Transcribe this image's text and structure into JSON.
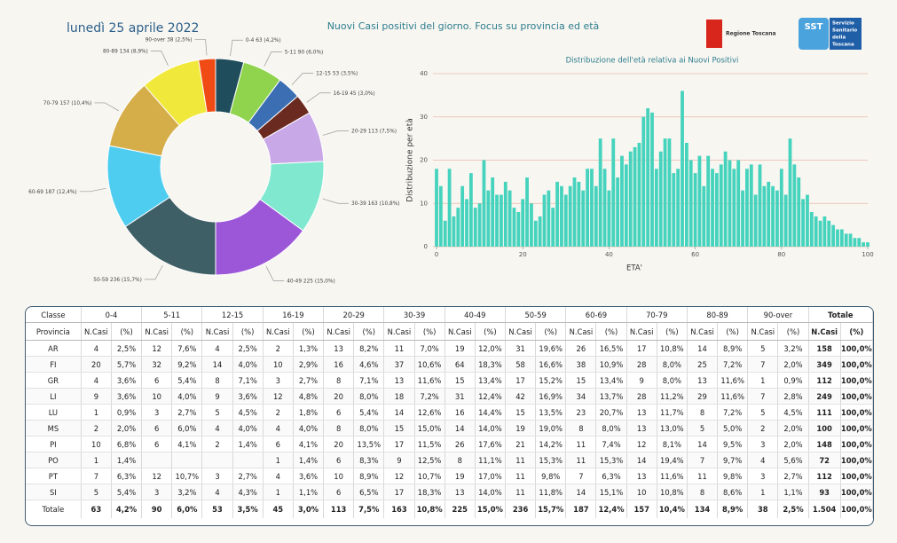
{
  "header": {
    "date": "lunedì 25 aprile 2022",
    "title": "Nuovi Casi positivi del giorno. Focus su provincia ed età",
    "logo1": "Regione Toscana",
    "logo2_mark": "SST",
    "logo2": [
      "Servizio",
      "Sanitario",
      "della",
      "Toscana"
    ]
  },
  "chart_data": [
    {
      "type": "pie",
      "categories": [
        "0-4",
        "5-11",
        "12-15",
        "16-19",
        "20-29",
        "30-39",
        "40-49",
        "50-59",
        "60-69",
        "70-79",
        "80-89",
        "90-over"
      ],
      "values": [
        63,
        90,
        53,
        45,
        113,
        163,
        225,
        236,
        187,
        157,
        134,
        38
      ],
      "value_labels": [
        "63 (4,2%)",
        "90 (6,0%)",
        "53 (3,5%)",
        "45 (3,0%)",
        "113 (7,5%)",
        "163 (10,8%)",
        "225 (15,0%)",
        "236 (15,7%)",
        "187 (12,4%)",
        "157 (10,4%)",
        "134 (8,9%)",
        "38 (2,5%)"
      ],
      "colors": [
        "#1f4d5c",
        "#8fd44c",
        "#3b6eb2",
        "#6a2a20",
        "#c9a8e8",
        "#80e8cf",
        "#9c57d8",
        "#3f5f67",
        "#4fcdf0",
        "#d5ae4a",
        "#f1e83c",
        "#f04b14"
      ]
    },
    {
      "type": "bar",
      "title": "Distribuzione dell'età relativa ai Nuovi Positivi",
      "xlabel": "ETA'",
      "ylabel": "Distribuzione per età",
      "x": [
        0,
        1,
        2,
        3,
        4,
        5,
        6,
        7,
        8,
        9,
        10,
        11,
        12,
        13,
        14,
        15,
        16,
        17,
        18,
        19,
        20,
        21,
        22,
        23,
        24,
        25,
        26,
        27,
        28,
        29,
        30,
        31,
        32,
        33,
        34,
        35,
        36,
        37,
        38,
        39,
        40,
        41,
        42,
        43,
        44,
        45,
        46,
        47,
        48,
        49,
        50,
        51,
        52,
        53,
        54,
        55,
        56,
        57,
        58,
        59,
        60,
        61,
        62,
        63,
        64,
        65,
        66,
        67,
        68,
        69,
        70,
        71,
        72,
        73,
        74,
        75,
        76,
        77,
        78,
        79,
        80,
        81,
        82,
        83,
        84,
        85,
        86,
        87,
        88,
        89,
        90,
        91,
        92,
        93,
        94,
        95,
        96,
        97,
        98,
        99,
        100
      ],
      "values": [
        18,
        14,
        6,
        18,
        7,
        9,
        14,
        11,
        17,
        9,
        10,
        20,
        13,
        16,
        12,
        12,
        15,
        13,
        9,
        8,
        11,
        16,
        10,
        6,
        7,
        12,
        13,
        9,
        15,
        14,
        12,
        14,
        16,
        15,
        13,
        18,
        18,
        14,
        25,
        18,
        13,
        25,
        16,
        21,
        19,
        22,
        23,
        24,
        30,
        32,
        31,
        18,
        22,
        25,
        25,
        17,
        18,
        36,
        24,
        20,
        17,
        21,
        14,
        21,
        18,
        17,
        19,
        22,
        20,
        18,
        20,
        13,
        18,
        19,
        12,
        19,
        14,
        15,
        14,
        13,
        18,
        12,
        25,
        19,
        16,
        11,
        12,
        8,
        7,
        6,
        7,
        6,
        5,
        4,
        4,
        3,
        3,
        2,
        2,
        1,
        1
      ],
      "color": "#45d3bd",
      "xlim": [
        0,
        100
      ],
      "xticks": [
        0,
        20,
        40,
        60,
        80,
        100
      ],
      "ylim": [
        0,
        40
      ],
      "yticks": [
        0,
        10,
        20,
        30,
        40
      ],
      "grid": true
    }
  ],
  "table": {
    "header_classes": [
      "Classe",
      "0-4",
      "5-11",
      "12-15",
      "16-19",
      "20-29",
      "30-39",
      "40-49",
      "50-59",
      "60-69",
      "70-79",
      "80-89",
      "90-over",
      "Totale"
    ],
    "header_sub": [
      "Provincia",
      "N.Casi",
      "(%)",
      "N.Casi",
      "(%)",
      "N.Casi",
      "(%)",
      "N.Casi",
      "(%)",
      "N.Casi",
      "(%)",
      "N.Casi",
      "(%)",
      "N.Casi",
      "(%)",
      "N.Casi",
      "(%)",
      "N.Casi",
      "(%)",
      "N.Casi",
      "(%)",
      "N.Casi",
      "(%)",
      "N.Casi",
      "(%)",
      "N.Casi",
      "(%)"
    ],
    "rows": [
      [
        "AR",
        "4",
        "2,5%",
        "12",
        "7,6%",
        "4",
        "2,5%",
        "2",
        "1,3%",
        "13",
        "8,2%",
        "11",
        "7,0%",
        "19",
        "12,0%",
        "31",
        "19,6%",
        "26",
        "16,5%",
        "17",
        "10,8%",
        "14",
        "8,9%",
        "5",
        "3,2%",
        "158",
        "100,0%"
      ],
      [
        "FI",
        "20",
        "5,7%",
        "32",
        "9,2%",
        "14",
        "4,0%",
        "10",
        "2,9%",
        "16",
        "4,6%",
        "37",
        "10,6%",
        "64",
        "18,3%",
        "58",
        "16,6%",
        "38",
        "10,9%",
        "28",
        "8,0%",
        "25",
        "7,2%",
        "7",
        "2,0%",
        "349",
        "100,0%"
      ],
      [
        "GR",
        "4",
        "3,6%",
        "6",
        "5,4%",
        "8",
        "7,1%",
        "3",
        "2,7%",
        "8",
        "7,1%",
        "13",
        "11,6%",
        "15",
        "13,4%",
        "17",
        "15,2%",
        "15",
        "13,4%",
        "9",
        "8,0%",
        "13",
        "11,6%",
        "1",
        "0,9%",
        "112",
        "100,0%"
      ],
      [
        "LI",
        "9",
        "3,6%",
        "10",
        "4,0%",
        "9",
        "3,6%",
        "12",
        "4,8%",
        "20",
        "8,0%",
        "18",
        "7,2%",
        "31",
        "12,4%",
        "42",
        "16,9%",
        "34",
        "13,7%",
        "28",
        "11,2%",
        "29",
        "11,6%",
        "7",
        "2,8%",
        "249",
        "100,0%"
      ],
      [
        "LU",
        "1",
        "0,9%",
        "3",
        "2,7%",
        "5",
        "4,5%",
        "2",
        "1,8%",
        "6",
        "5,4%",
        "14",
        "12,6%",
        "16",
        "14,4%",
        "15",
        "13,5%",
        "23",
        "20,7%",
        "13",
        "11,7%",
        "8",
        "7,2%",
        "5",
        "4,5%",
        "111",
        "100,0%"
      ],
      [
        "MS",
        "2",
        "2,0%",
        "6",
        "6,0%",
        "4",
        "4,0%",
        "4",
        "4,0%",
        "8",
        "8,0%",
        "15",
        "15,0%",
        "14",
        "14,0%",
        "19",
        "19,0%",
        "8",
        "8,0%",
        "13",
        "13,0%",
        "5",
        "5,0%",
        "2",
        "2,0%",
        "100",
        "100,0%"
      ],
      [
        "PI",
        "10",
        "6,8%",
        "6",
        "4,1%",
        "2",
        "1,4%",
        "6",
        "4,1%",
        "20",
        "13,5%",
        "17",
        "11,5%",
        "26",
        "17,6%",
        "21",
        "14,2%",
        "11",
        "7,4%",
        "12",
        "8,1%",
        "14",
        "9,5%",
        "3",
        "2,0%",
        "148",
        "100,0%"
      ],
      [
        "PO",
        "1",
        "1,4%",
        null,
        null,
        null,
        null,
        "1",
        "1,4%",
        "6",
        "8,3%",
        "9",
        "12,5%",
        "8",
        "11,1%",
        "11",
        "15,3%",
        "11",
        "15,3%",
        "14",
        "19,4%",
        "7",
        "9,7%",
        "4",
        "5,6%",
        "72",
        "100,0%"
      ],
      [
        "PT",
        "7",
        "6,3%",
        "12",
        "10,7%",
        "3",
        "2,7%",
        "4",
        "3,6%",
        "10",
        "8,9%",
        "12",
        "10,7%",
        "19",
        "17,0%",
        "11",
        "9,8%",
        "7",
        "6,3%",
        "13",
        "11,6%",
        "11",
        "9,8%",
        "3",
        "2,7%",
        "112",
        "100,0%"
      ],
      [
        "SI",
        "5",
        "5,4%",
        "3",
        "3,2%",
        "4",
        "4,3%",
        "1",
        "1,1%",
        "6",
        "6,5%",
        "17",
        "18,3%",
        "13",
        "14,0%",
        "11",
        "11,8%",
        "14",
        "15,1%",
        "10",
        "10,8%",
        "8",
        "8,6%",
        "1",
        "1,1%",
        "93",
        "100,0%"
      ],
      [
        "Totale",
        "63",
        "4,2%",
        "90",
        "6,0%",
        "53",
        "3,5%",
        "45",
        "3,0%",
        "113",
        "7,5%",
        "163",
        "10,8%",
        "225",
        "15,0%",
        "236",
        "15,7%",
        "187",
        "12,4%",
        "157",
        "10,4%",
        "134",
        "8,9%",
        "38",
        "2,5%",
        "1.504",
        "100,0%"
      ]
    ]
  }
}
